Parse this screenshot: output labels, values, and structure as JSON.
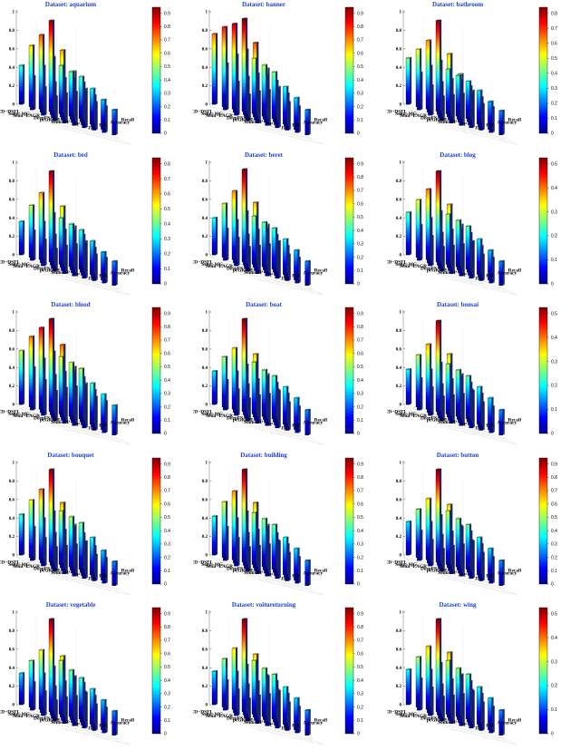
{
  "title_prefix": "Dataset: ",
  "methods": [
    "MCD−DSFL",
    "Semi−MG",
    "Semi−EAGR",
    "DeepFS",
    "pcGRBM",
    "Semi−SP",
    "SP"
  ],
  "metrics": [
    "Jac",
    "FM",
    "Accuracy",
    "Recall"
  ],
  "z_ticks": [
    "0",
    "0.2",
    "0.4",
    "0.6",
    "0.8",
    "1"
  ],
  "colormap": [
    "#00008f",
    "#0000ff",
    "#0080ff",
    "#00ffff",
    "#80ff80",
    "#ffff00",
    "#ff8000",
    "#ff0000",
    "#800000"
  ],
  "chart_data": [
    {
      "type": "bar3d",
      "title": "Dataset: aquarium",
      "zlim": [
        0,
        1
      ],
      "colorbar_ticks": [
        "0",
        "0.1",
        "0.2",
        "0.3",
        "0.4",
        "0.5",
        "0.6",
        "0.7",
        "0.8",
        "0.9"
      ],
      "series": [
        {
          "metric": "Jac",
          "values": [
            0.42,
            0.66,
            0.8,
            0.98,
            0.52,
            0.48,
            0.45
          ]
        },
        {
          "metric": "FM",
          "values": [
            0.36,
            0.5,
            0.62,
            0.72,
            0.44,
            0.42,
            0.38
          ]
        },
        {
          "metric": "Accuracy",
          "values": [
            0.3,
            0.38,
            0.45,
            0.55,
            0.36,
            0.34,
            0.32
          ]
        },
        {
          "metric": "Recall",
          "values": [
            0.26,
            0.32,
            0.36,
            0.42,
            0.3,
            0.28,
            0.27
          ]
        }
      ]
    },
    {
      "type": "bar3d",
      "title": "Dataset: banner",
      "zlim": [
        0,
        1
      ],
      "colorbar_ticks": [
        "0",
        "0.1",
        "0.2",
        "0.3",
        "0.4",
        "0.5",
        "0.6",
        "0.7",
        "0.8",
        "0.9"
      ],
      "series": [
        {
          "metric": "Jac",
          "values": [
            0.76,
            0.86,
            0.92,
            1.0,
            0.6,
            0.55,
            0.5
          ]
        },
        {
          "metric": "FM",
          "values": [
            0.5,
            0.62,
            0.7,
            0.8,
            0.48,
            0.44,
            0.4
          ]
        },
        {
          "metric": "Accuracy",
          "values": [
            0.36,
            0.44,
            0.5,
            0.58,
            0.38,
            0.36,
            0.34
          ]
        },
        {
          "metric": "Recall",
          "values": [
            0.28,
            0.34,
            0.38,
            0.44,
            0.3,
            0.28,
            0.27
          ]
        }
      ]
    },
    {
      "type": "bar3d",
      "title": "Dataset: bathroom",
      "zlim": [
        0,
        1
      ],
      "colorbar_ticks": [
        "0",
        "0.1",
        "0.2",
        "0.3",
        "0.4",
        "0.5",
        "0.6",
        "0.7",
        "0.8"
      ],
      "series": [
        {
          "metric": "Jac",
          "values": [
            0.5,
            0.62,
            0.74,
            0.98,
            0.48,
            0.44,
            0.4
          ]
        },
        {
          "metric": "FM",
          "values": [
            0.4,
            0.5,
            0.58,
            0.68,
            0.42,
            0.38,
            0.36
          ]
        },
        {
          "metric": "Accuracy",
          "values": [
            0.32,
            0.38,
            0.44,
            0.52,
            0.34,
            0.32,
            0.3
          ]
        },
        {
          "metric": "Recall",
          "values": [
            0.26,
            0.3,
            0.34,
            0.4,
            0.28,
            0.27,
            0.26
          ]
        }
      ]
    },
    {
      "type": "bar3d",
      "title": "Dataset: bed",
      "zlim": [
        0,
        1
      ],
      "colorbar_ticks": [
        "0",
        "0.1",
        "0.2",
        "0.3",
        "0.4",
        "0.5",
        "0.6",
        "0.7",
        "0.8"
      ],
      "series": [
        {
          "metric": "Jac",
          "values": [
            0.36,
            0.56,
            0.72,
            0.98,
            0.5,
            0.46,
            0.42
          ]
        },
        {
          "metric": "FM",
          "values": [
            0.32,
            0.44,
            0.56,
            0.66,
            0.42,
            0.4,
            0.36
          ]
        },
        {
          "metric": "Accuracy",
          "values": [
            0.28,
            0.36,
            0.44,
            0.5,
            0.34,
            0.32,
            0.3
          ]
        },
        {
          "metric": "Recall",
          "values": [
            0.24,
            0.3,
            0.34,
            0.4,
            0.28,
            0.27,
            0.26
          ]
        }
      ]
    },
    {
      "type": "bar3d",
      "title": "Dataset: beret",
      "zlim": [
        0,
        1
      ],
      "colorbar_ticks": [
        "0",
        "0.1",
        "0.2",
        "0.3",
        "0.4",
        "0.5",
        "0.6",
        "0.7",
        "0.8",
        "0.9"
      ],
      "series": [
        {
          "metric": "Jac",
          "values": [
            0.4,
            0.58,
            0.74,
            1.0,
            0.52,
            0.48,
            0.44
          ]
        },
        {
          "metric": "FM",
          "values": [
            0.34,
            0.46,
            0.58,
            0.7,
            0.44,
            0.4,
            0.38
          ]
        },
        {
          "metric": "Accuracy",
          "values": [
            0.3,
            0.36,
            0.44,
            0.52,
            0.36,
            0.34,
            0.32
          ]
        },
        {
          "metric": "Recall",
          "values": [
            0.26,
            0.3,
            0.34,
            0.4,
            0.28,
            0.27,
            0.26
          ]
        }
      ]
    },
    {
      "type": "bar3d",
      "title": "Dataset: blog",
      "zlim": [
        0,
        1
      ],
      "colorbar_ticks": [
        "0",
        "0.1",
        "0.2",
        "0.3",
        "0.4",
        "0.5"
      ],
      "series": [
        {
          "metric": "Jac",
          "values": [
            0.46,
            0.62,
            0.76,
            0.98,
            0.54,
            0.5,
            0.46
          ]
        },
        {
          "metric": "FM",
          "values": [
            0.38,
            0.48,
            0.58,
            0.68,
            0.44,
            0.42,
            0.38
          ]
        },
        {
          "metric": "Accuracy",
          "values": [
            0.32,
            0.38,
            0.44,
            0.52,
            0.36,
            0.34,
            0.32
          ]
        },
        {
          "metric": "Recall",
          "values": [
            0.26,
            0.3,
            0.34,
            0.4,
            0.28,
            0.27,
            0.26
          ]
        }
      ]
    },
    {
      "type": "bar3d",
      "title": "Dataset: blood",
      "zlim": [
        0,
        1
      ],
      "colorbar_ticks": [
        "0",
        "0.1",
        "0.2",
        "0.3",
        "0.4",
        "0.5",
        "0.6",
        "0.7",
        "0.8",
        "0.9"
      ],
      "series": [
        {
          "metric": "Jac",
          "values": [
            0.58,
            0.76,
            0.88,
            1.0,
            0.62,
            0.58,
            0.54
          ]
        },
        {
          "metric": "FM",
          "values": [
            0.46,
            0.58,
            0.68,
            0.78,
            0.52,
            0.48,
            0.44
          ]
        },
        {
          "metric": "Accuracy",
          "values": [
            0.38,
            0.46,
            0.52,
            0.6,
            0.42,
            0.4,
            0.38
          ]
        },
        {
          "metric": "Recall",
          "values": [
            0.32,
            0.38,
            0.42,
            0.48,
            0.36,
            0.34,
            0.32
          ]
        }
      ]
    },
    {
      "type": "bar3d",
      "title": "Dataset: boat",
      "zlim": [
        0,
        1
      ],
      "colorbar_ticks": [
        "0",
        "0.1",
        "0.2",
        "0.3",
        "0.4",
        "0.5",
        "0.6",
        "0.7",
        "0.8",
        "0.9"
      ],
      "series": [
        {
          "metric": "Jac",
          "values": [
            0.36,
            0.54,
            0.66,
            1.0,
            0.56,
            0.5,
            0.46
          ]
        },
        {
          "metric": "FM",
          "values": [
            0.32,
            0.44,
            0.54,
            0.68,
            0.46,
            0.42,
            0.4
          ]
        },
        {
          "metric": "Accuracy",
          "values": [
            0.28,
            0.36,
            0.44,
            0.52,
            0.38,
            0.36,
            0.34
          ]
        },
        {
          "metric": "Recall",
          "values": [
            0.24,
            0.3,
            0.34,
            0.4,
            0.3,
            0.28,
            0.27
          ]
        }
      ]
    },
    {
      "type": "bar3d",
      "title": "Dataset: bonsai",
      "zlim": [
        0,
        1
      ],
      "colorbar_ticks": [
        "0",
        "0.1",
        "0.2",
        "0.3",
        "0.4",
        "0.5"
      ],
      "series": [
        {
          "metric": "Jac",
          "values": [
            0.38,
            0.56,
            0.7,
            0.98,
            0.54,
            0.5,
            0.46
          ]
        },
        {
          "metric": "FM",
          "values": [
            0.34,
            0.46,
            0.56,
            0.68,
            0.46,
            0.42,
            0.4
          ]
        },
        {
          "metric": "Accuracy",
          "values": [
            0.3,
            0.36,
            0.44,
            0.52,
            0.38,
            0.36,
            0.34
          ]
        },
        {
          "metric": "Recall",
          "values": [
            0.26,
            0.3,
            0.34,
            0.4,
            0.3,
            0.28,
            0.27
          ]
        }
      ]
    },
    {
      "type": "bar3d",
      "title": "Dataset: bouquet",
      "zlim": [
        0,
        1
      ],
      "colorbar_ticks": [
        "0",
        "0.1",
        "0.2",
        "0.3",
        "0.4",
        "0.5",
        "0.6",
        "0.7",
        "0.8",
        "0.9"
      ],
      "series": [
        {
          "metric": "Jac",
          "values": [
            0.44,
            0.62,
            0.76,
            1.0,
            0.58,
            0.54,
            0.5
          ]
        },
        {
          "metric": "FM",
          "values": [
            0.36,
            0.48,
            0.58,
            0.7,
            0.46,
            0.42,
            0.4
          ]
        },
        {
          "metric": "Accuracy",
          "values": [
            0.3,
            0.38,
            0.44,
            0.52,
            0.36,
            0.34,
            0.32
          ]
        },
        {
          "metric": "Recall",
          "values": [
            0.26,
            0.3,
            0.34,
            0.4,
            0.28,
            0.27,
            0.26
          ]
        }
      ]
    },
    {
      "type": "bar3d",
      "title": "Dataset: building",
      "zlim": [
        0,
        1
      ],
      "colorbar_ticks": [
        "0",
        "0.1",
        "0.2",
        "0.3",
        "0.4",
        "0.5",
        "0.6",
        "0.7",
        "0.8",
        "0.9"
      ],
      "series": [
        {
          "metric": "Jac",
          "values": [
            0.42,
            0.6,
            0.74,
            1.0,
            0.56,
            0.52,
            0.48
          ]
        },
        {
          "metric": "FM",
          "values": [
            0.36,
            0.48,
            0.58,
            0.7,
            0.46,
            0.42,
            0.4
          ]
        },
        {
          "metric": "Accuracy",
          "values": [
            0.3,
            0.38,
            0.44,
            0.52,
            0.38,
            0.36,
            0.34
          ]
        },
        {
          "metric": "Recall",
          "values": [
            0.26,
            0.3,
            0.34,
            0.4,
            0.3,
            0.28,
            0.27
          ]
        }
      ]
    },
    {
      "type": "bar3d",
      "title": "Dataset: button",
      "zlim": [
        0,
        1
      ],
      "colorbar_ticks": [
        "0",
        "0.1",
        "0.2",
        "0.3",
        "0.4",
        "0.5",
        "0.6",
        "0.7",
        "0.8",
        "0.9"
      ],
      "series": [
        {
          "metric": "Jac",
          "values": [
            0.36,
            0.52,
            0.66,
            1.0,
            0.58,
            0.52,
            0.48
          ]
        },
        {
          "metric": "FM",
          "values": [
            0.32,
            0.44,
            0.54,
            0.68,
            0.48,
            0.44,
            0.4
          ]
        },
        {
          "metric": "Accuracy",
          "values": [
            0.28,
            0.36,
            0.42,
            0.5,
            0.38,
            0.36,
            0.34
          ]
        },
        {
          "metric": "Recall",
          "values": [
            0.24,
            0.3,
            0.34,
            0.4,
            0.3,
            0.28,
            0.27
          ]
        }
      ]
    },
    {
      "type": "bar3d",
      "title": "Dataset: vegetable",
      "zlim": [
        0,
        1
      ],
      "colorbar_ticks": [
        "0",
        "0.1",
        "0.2",
        "0.3",
        "0.4",
        "0.5",
        "0.6",
        "0.7",
        "0.8",
        "0.9"
      ],
      "series": [
        {
          "metric": "Jac",
          "values": [
            0.34,
            0.5,
            0.64,
            1.0,
            0.58,
            0.5,
            0.44
          ]
        },
        {
          "metric": "FM",
          "values": [
            0.3,
            0.42,
            0.52,
            0.66,
            0.46,
            0.42,
            0.38
          ]
        },
        {
          "metric": "Accuracy",
          "values": [
            0.26,
            0.34,
            0.42,
            0.5,
            0.36,
            0.34,
            0.32
          ]
        },
        {
          "metric": "Recall",
          "values": [
            0.22,
            0.28,
            0.32,
            0.38,
            0.28,
            0.27,
            0.26
          ]
        }
      ]
    },
    {
      "type": "bar3d",
      "title": "Dataset: voitureturning",
      "zlim": [
        0,
        1
      ],
      "colorbar_ticks": [
        "0",
        "0.1",
        "0.2",
        "0.3",
        "0.4",
        "0.5",
        "0.6",
        "0.7",
        "0.8",
        "0.9"
      ],
      "series": [
        {
          "metric": "Jac",
          "values": [
            0.36,
            0.52,
            0.66,
            1.0,
            0.58,
            0.52,
            0.48
          ]
        },
        {
          "metric": "FM",
          "values": [
            0.32,
            0.44,
            0.54,
            0.68,
            0.48,
            0.44,
            0.4
          ]
        },
        {
          "metric": "Accuracy",
          "values": [
            0.28,
            0.36,
            0.42,
            0.5,
            0.38,
            0.36,
            0.34
          ]
        },
        {
          "metric": "Recall",
          "values": [
            0.24,
            0.3,
            0.34,
            0.4,
            0.3,
            0.28,
            0.27
          ]
        }
      ]
    },
    {
      "type": "bar3d",
      "title": "Dataset: wing",
      "zlim": [
        0,
        1
      ],
      "colorbar_ticks": [
        "0",
        "0.1",
        "0.2",
        "0.3",
        "0.4",
        "0.5"
      ],
      "series": [
        {
          "metric": "Jac",
          "values": [
            0.38,
            0.54,
            0.68,
            1.0,
            0.58,
            0.52,
            0.48
          ]
        },
        {
          "metric": "FM",
          "values": [
            0.34,
            0.46,
            0.56,
            0.7,
            0.48,
            0.44,
            0.4
          ]
        },
        {
          "metric": "Accuracy",
          "values": [
            0.3,
            0.36,
            0.44,
            0.52,
            0.38,
            0.36,
            0.34
          ]
        },
        {
          "metric": "Recall",
          "values": [
            0.26,
            0.3,
            0.34,
            0.4,
            0.3,
            0.28,
            0.27
          ]
        }
      ]
    }
  ]
}
